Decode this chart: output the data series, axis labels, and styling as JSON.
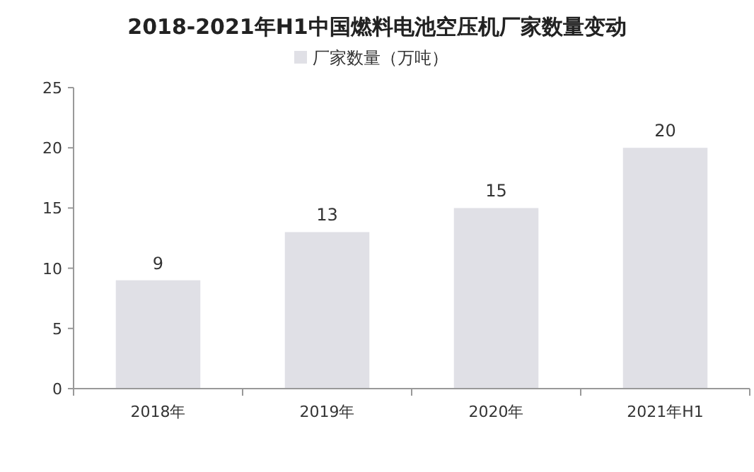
{
  "chart_data": {
    "type": "bar",
    "title": "2018-2021年H1中国燃料电池空压机厂家数量变动",
    "categories": [
      "2018年",
      "2019年",
      "2020年",
      "2021年H1"
    ],
    "series": [
      {
        "name": "厂家数量（万吨）",
        "color": "#e0e0e6",
        "values": [
          9,
          13,
          15,
          20
        ]
      }
    ],
    "ylim": [
      0,
      25
    ],
    "yticks": [
      0,
      5,
      10,
      15,
      20,
      25
    ],
    "data_labels": true,
    "legend": "top",
    "grid": false
  }
}
